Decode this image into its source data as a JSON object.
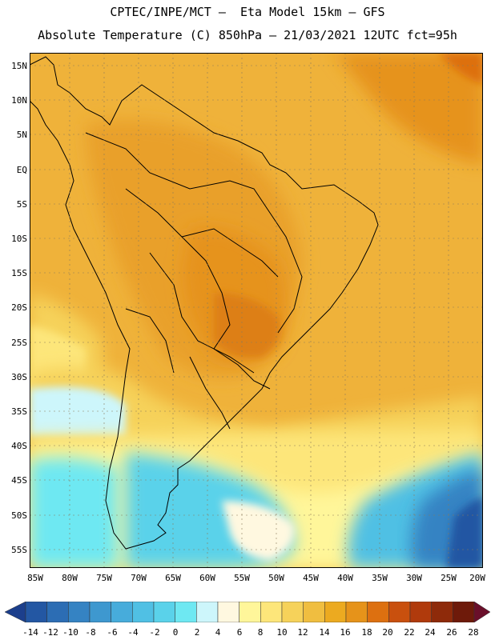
{
  "header": {
    "line1": "CPTEC/INPE/MCT –  Eta Model 15km – GFS",
    "line2": "Absolute Temperature (C) 850hPa – 21/03/2021 12UTC fct=95h"
  },
  "map": {
    "lat_labels": [
      "15N",
      "10N",
      "5N",
      "EQ",
      "5S",
      "10S",
      "15S",
      "20S",
      "25S",
      "30S",
      "35S",
      "40S",
      "45S",
      "50S",
      "55S"
    ],
    "lon_labels": [
      "85W",
      "80W",
      "75W",
      "70W",
      "65W",
      "60W",
      "55W",
      "50W",
      "45W",
      "40W",
      "35W",
      "30W",
      "25W",
      "20W"
    ]
  },
  "colorbar": {
    "labels": [
      "-14",
      "-12",
      "-10",
      "-8",
      "-6",
      "-4",
      "-2",
      "0",
      "2",
      "4",
      "6",
      "8",
      "10",
      "12",
      "14",
      "16",
      "18",
      "20",
      "22",
      "24",
      "26",
      "28"
    ],
    "colors": [
      "#1c3f8c",
      "#2357a3",
      "#2c6db4",
      "#3583c3",
      "#3e98cf",
      "#47acdb",
      "#50c0e4",
      "#5ad2ea",
      "#6ee8f2",
      "#cdf6fb",
      "#fff8e0",
      "#fff69a",
      "#fde67a",
      "#f6d25a",
      "#f0be40",
      "#ecaa20",
      "#e6931a",
      "#dd7010",
      "#c9500e",
      "#b03a0c",
      "#8e2a0a",
      "#6e1a0a",
      "#6a0f2a"
    ]
  }
}
